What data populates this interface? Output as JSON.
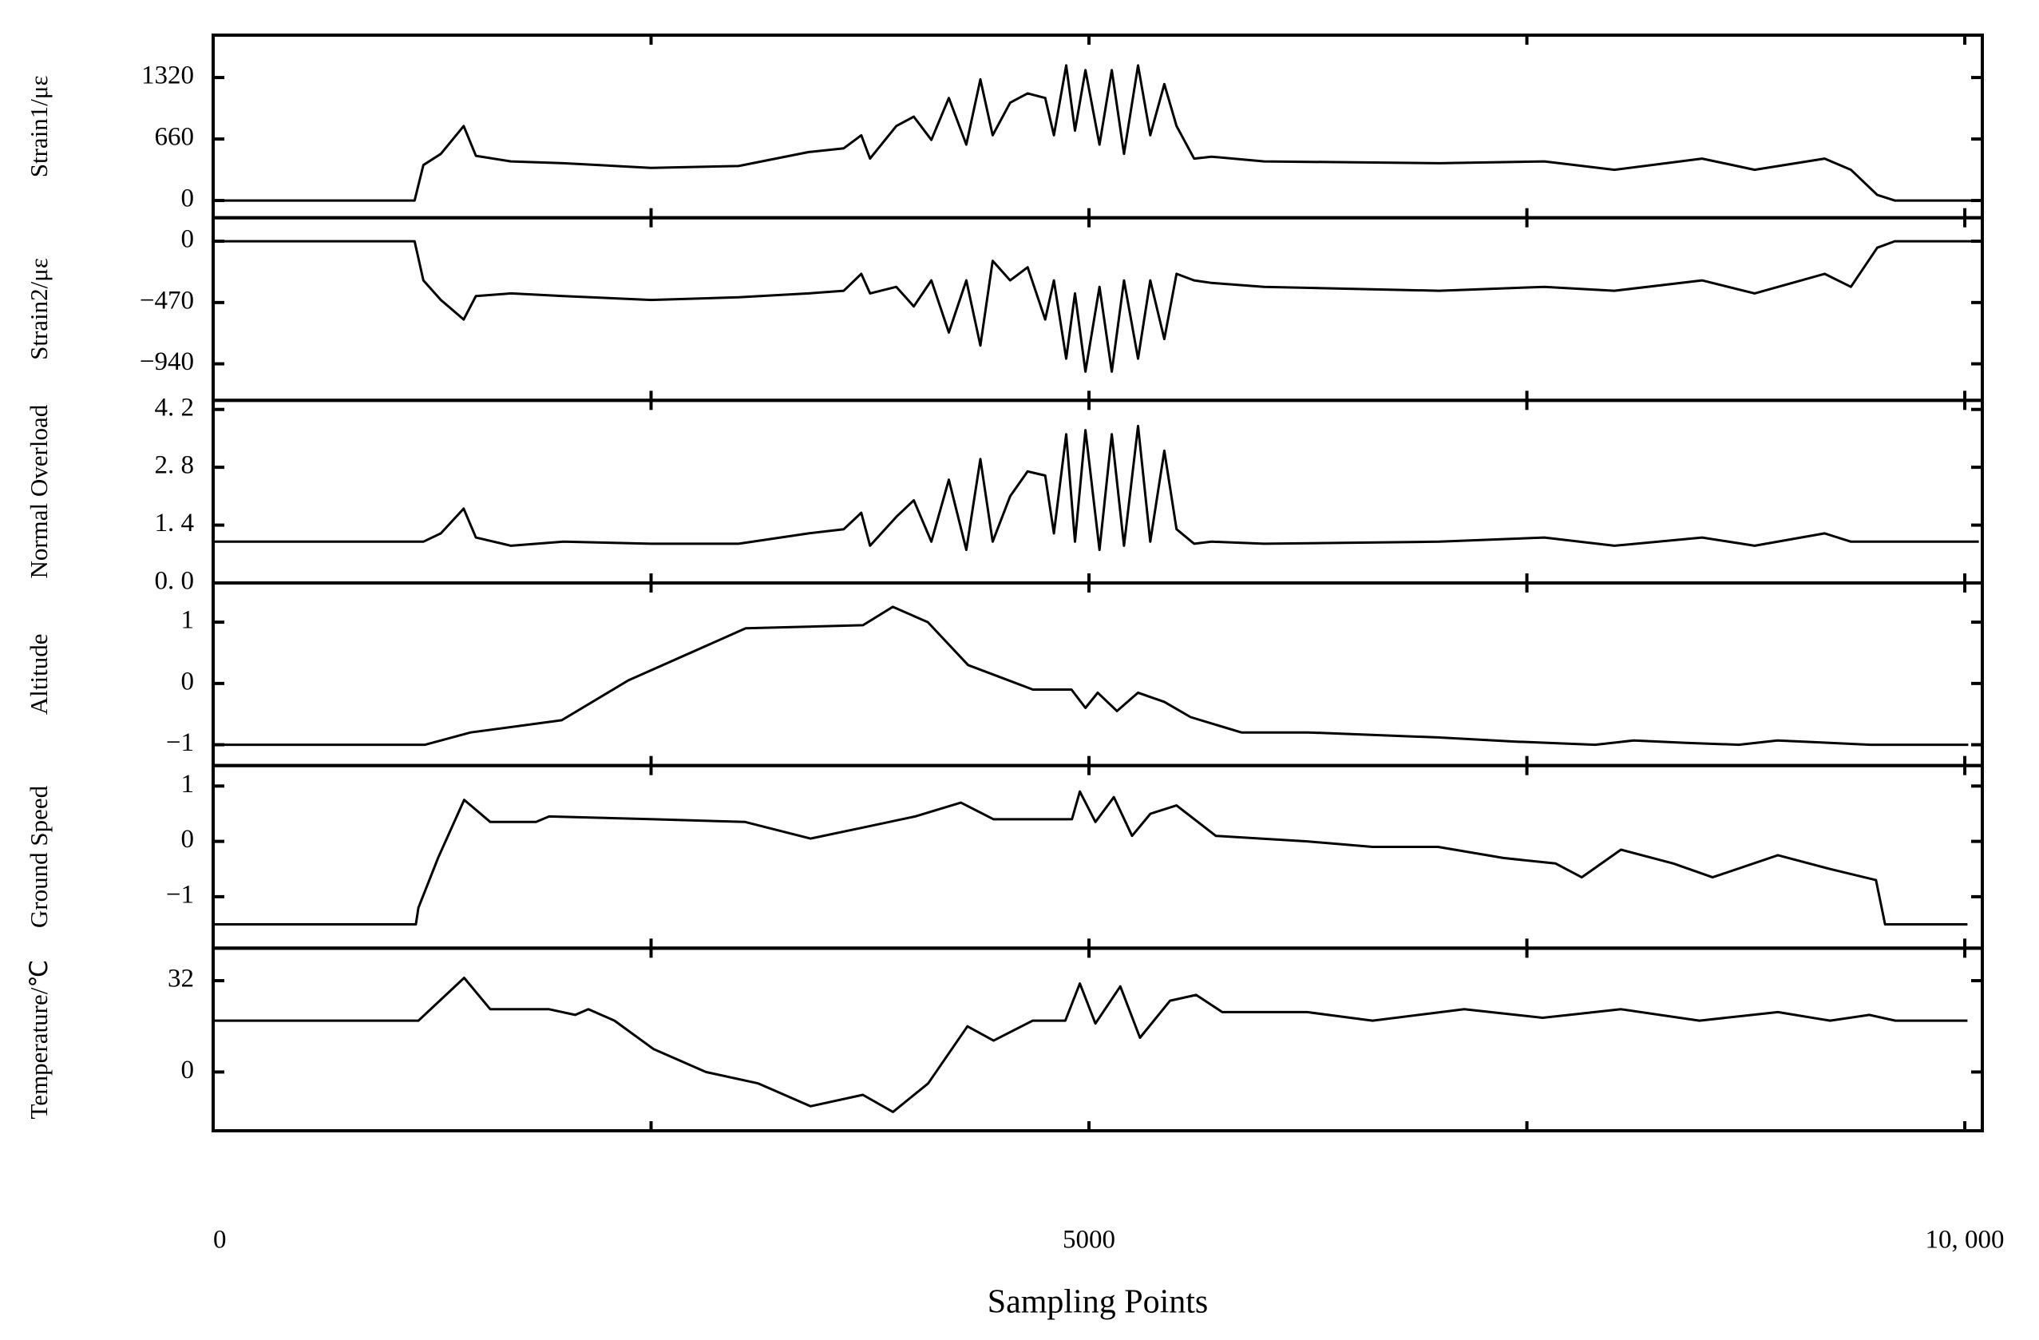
{
  "chart_data": [
    {
      "type": "line",
      "ylabel": "Strain1/με",
      "color": "#000000",
      "xlim": [
        0,
        10100
      ],
      "ylim": [
        -185,
        1775
      ],
      "yticks": [
        0,
        660,
        1320
      ],
      "x": [
        0,
        1150,
        1200,
        1300,
        1430,
        1500,
        1700,
        2000,
        2500,
        3000,
        3400,
        3600,
        3700,
        3750,
        3900,
        4000,
        4100,
        4200,
        4300,
        4380,
        4450,
        4550,
        4650,
        4750,
        4800,
        4870,
        4920,
        4980,
        5060,
        5130,
        5200,
        5280,
        5350,
        5430,
        5500,
        5600,
        5700,
        6000,
        7000,
        7600,
        8000,
        8500,
        8800,
        9200,
        9350,
        9500,
        9600,
        10080
      ],
      "values": [
        0,
        0,
        380,
        500,
        800,
        480,
        420,
        400,
        350,
        370,
        520,
        560,
        700,
        450,
        800,
        900,
        650,
        1100,
        600,
        1300,
        700,
        1050,
        1150,
        1100,
        700,
        1450,
        750,
        1400,
        600,
        1400,
        500,
        1450,
        700,
        1250,
        800,
        450,
        470,
        420,
        400,
        420,
        330,
        450,
        330,
        450,
        330,
        60,
        0,
        0
      ]
    },
    {
      "type": "line",
      "ylabel": "Strain2/με",
      "color": "#000000",
      "xlim": [
        0,
        10100
      ],
      "ylim": [
        -1220,
        180
      ],
      "yticks": [
        0,
        {
          "value": -470,
          "label": "−470"
        },
        {
          "value": -940,
          "label": "−940"
        }
      ],
      "x": [
        0,
        1150,
        1200,
        1300,
        1430,
        1500,
        1700,
        2000,
        2500,
        3000,
        3400,
        3600,
        3700,
        3750,
        3900,
        4000,
        4100,
        4200,
        4300,
        4380,
        4450,
        4550,
        4650,
        4750,
        4800,
        4870,
        4920,
        4980,
        5060,
        5130,
        5200,
        5280,
        5350,
        5430,
        5500,
        5600,
        5700,
        6000,
        7000,
        7600,
        8000,
        8500,
        8800,
        9200,
        9350,
        9500,
        9600,
        10080
      ],
      "values": [
        0,
        0,
        -300,
        -450,
        -600,
        -420,
        -400,
        -420,
        -450,
        -430,
        -400,
        -380,
        -250,
        -400,
        -350,
        -500,
        -300,
        -700,
        -300,
        -800,
        -150,
        -300,
        -200,
        -600,
        -300,
        -900,
        -400,
        -1000,
        -350,
        -1000,
        -300,
        -900,
        -300,
        -750,
        -250,
        -300,
        -320,
        -350,
        -380,
        -350,
        -380,
        -300,
        -400,
        -250,
        -350,
        -50,
        0,
        0
      ]
    },
    {
      "type": "line",
      "ylabel": "Normal Overload",
      "color": "#000000",
      "xlim": [
        0,
        10100
      ],
      "ylim": [
        0,
        4.42
      ],
      "yticks": [
        {
          "value": 0,
          "label": "0. 0"
        },
        {
          "value": 1.4,
          "label": "1. 4"
        },
        {
          "value": 2.8,
          "label": "2. 8"
        },
        {
          "value": 4.2,
          "label": "4. 2"
        }
      ],
      "x": [
        0,
        1150,
        1200,
        1300,
        1430,
        1500,
        1700,
        2000,
        2500,
        3000,
        3400,
        3600,
        3700,
        3750,
        3900,
        4000,
        4100,
        4200,
        4300,
        4380,
        4450,
        4550,
        4650,
        4750,
        4800,
        4870,
        4920,
        4980,
        5060,
        5130,
        5200,
        5280,
        5350,
        5430,
        5500,
        5600,
        5700,
        6000,
        7000,
        7600,
        8000,
        8500,
        8800,
        9200,
        9350,
        9500,
        9600,
        10080
      ],
      "values": [
        1.0,
        1.0,
        1.0,
        1.2,
        1.8,
        1.1,
        0.9,
        1.0,
        0.95,
        0.95,
        1.2,
        1.3,
        1.7,
        0.9,
        1.6,
        2.0,
        1.0,
        2.5,
        0.8,
        3.0,
        1.0,
        2.1,
        2.7,
        2.6,
        1.2,
        3.6,
        1.0,
        3.7,
        0.8,
        3.6,
        0.9,
        3.8,
        1.0,
        3.2,
        1.3,
        0.95,
        1.0,
        0.95,
        1.0,
        1.1,
        0.9,
        1.1,
        0.9,
        1.2,
        1.0,
        1.0,
        1.0,
        1.0
      ]
    },
    {
      "type": "line",
      "ylabel": "Altitude",
      "color": "#000000",
      "xlim": [
        0,
        10100
      ],
      "ylim": [
        -1.34,
        1.64
      ],
      "yticks": [
        {
          "value": -1,
          "label": "−1"
        },
        0,
        1
      ],
      "x": [
        0,
        1210,
        1470,
        1990,
        2370,
        3040,
        3710,
        3880,
        4080,
        4310,
        4680,
        4900,
        4980,
        5050,
        5160,
        5280,
        5430,
        5580,
        5870,
        6250,
        6990,
        7440,
        7890,
        8110,
        8410,
        8710,
        8930,
        9230,
        9460,
        10020
      ],
      "values": [
        -1,
        -1,
        -0.8,
        -0.6,
        0.05,
        0.9,
        0.95,
        1.25,
        1.0,
        0.3,
        -0.1,
        -0.1,
        -0.4,
        -0.15,
        -0.45,
        -0.15,
        -0.3,
        -0.55,
        -0.8,
        -0.8,
        -0.88,
        -0.95,
        -1.0,
        -0.93,
        -0.97,
        -1.0,
        -0.93,
        -0.97,
        -1.0,
        -1.0
      ]
    },
    {
      "type": "line",
      "ylabel": "Ground Speed",
      "color": "#000000",
      "xlim": [
        0,
        10100
      ],
      "ylim": [
        -1.93,
        1.37
      ],
      "yticks": [
        {
          "value": -1,
          "label": "−1"
        },
        0,
        1
      ],
      "x": [
        0,
        1157,
        1172,
        1284,
        1433,
        1582,
        1843,
        1918,
        2515,
        3037,
        3410,
        3709,
        4007,
        4269,
        4455,
        4903,
        4948,
        5037,
        5142,
        5246,
        5351,
        5500,
        5724,
        6246,
        6619,
        6993,
        7366,
        7664,
        7813,
        8037,
        8336,
        8560,
        8933,
        9231,
        9493,
        9545,
        10015
      ],
      "values": [
        -1.5,
        -1.5,
        -1.2,
        -0.3,
        0.75,
        0.35,
        0.35,
        0.45,
        0.4,
        0.35,
        0.05,
        0.25,
        0.45,
        0.7,
        0.4,
        0.4,
        0.9,
        0.35,
        0.8,
        0.1,
        0.5,
        0.65,
        0.1,
        0.0,
        -0.1,
        -0.1,
        -0.3,
        -0.4,
        -0.65,
        -0.15,
        -0.4,
        -0.65,
        -0.25,
        -0.5,
        -0.7,
        -1.5,
        -1.5
      ]
    },
    {
      "type": "line",
      "ylabel": "Temperature/℃",
      "color": "#000000",
      "xlim": [
        0,
        10100
      ],
      "ylim": [
        -20.6,
        43.4
      ],
      "yticks": [
        0,
        32
      ],
      "xlabel": "Sampling Points",
      "xticks": [
        0,
        5000,
        {
          "value": 10000,
          "label": "10, 000"
        }
      ],
      "xminor_ticks": [
        2500,
        7500
      ],
      "x": [
        0,
        1172,
        1433,
        1582,
        1918,
        2067,
        2142,
        2291,
        2515,
        2813,
        3112,
        3410,
        3709,
        3881,
        4082,
        4306,
        4455,
        4679,
        4865,
        4948,
        5037,
        5179,
        5291,
        5463,
        5612,
        5761,
        6246,
        6619,
        7142,
        7590,
        8037,
        8485,
        8933,
        9231,
        9455,
        9604,
        10015
      ],
      "values": [
        18,
        18,
        33,
        22,
        22,
        20,
        22,
        18,
        8,
        0,
        -4,
        -12,
        -8,
        -14,
        -4,
        16,
        11,
        18,
        18,
        31,
        17,
        30,
        12,
        25,
        27,
        21,
        21,
        18,
        22,
        19,
        22,
        18,
        21,
        18,
        20,
        18,
        18
      ]
    }
  ]
}
